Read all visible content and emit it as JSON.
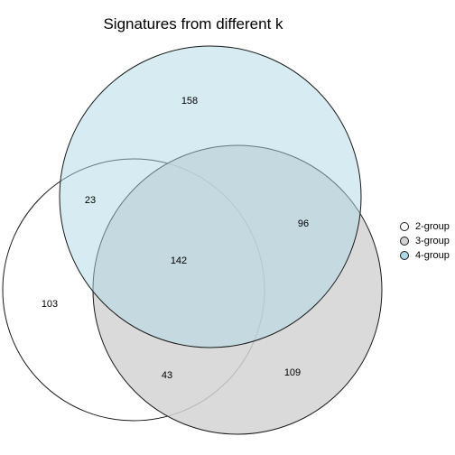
{
  "chart_data": {
    "type": "venn",
    "title": "Signatures from different k",
    "sets": [
      {
        "name": "2-group",
        "color": "#ffffff"
      },
      {
        "name": "3-group",
        "color": "#d3d3d3"
      },
      {
        "name": "4-group",
        "color": "#add8e6"
      }
    ],
    "regions": [
      {
        "sets": [
          "4-group"
        ],
        "value": 158
      },
      {
        "sets": [
          "2-group",
          "4-group"
        ],
        "value": 23
      },
      {
        "sets": [
          "3-group",
          "4-group"
        ],
        "value": 96
      },
      {
        "sets": [
          "2-group",
          "3-group",
          "4-group"
        ],
        "value": 142
      },
      {
        "sets": [
          "2-group"
        ],
        "value": 103
      },
      {
        "sets": [
          "2-group",
          "3-group"
        ],
        "value": 43
      },
      {
        "sets": [
          "3-group"
        ],
        "value": 109
      }
    ],
    "legend_position": "right"
  }
}
